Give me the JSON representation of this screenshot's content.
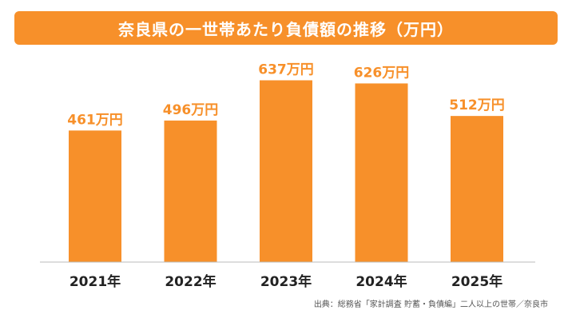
{
  "chart_data": {
    "type": "bar",
    "title": "奈良県の一世帯あたり負債額の推移（万円）",
    "categories": [
      "2021年",
      "2022年",
      "2023年",
      "2024年",
      "2025年"
    ],
    "values": [
      461,
      496,
      637,
      626,
      512
    ],
    "data_labels": [
      "461万円",
      "496万円",
      "637万円",
      "626万円",
      "512万円"
    ],
    "ylim": [
      0,
      700
    ],
    "grid": false,
    "legend": "none",
    "bar_color": "#f7902a",
    "label_color": "#f7902a"
  },
  "source": "出典：総務省「家計調査 貯蓄・負債編」二人以上の世帯／奈良市"
}
